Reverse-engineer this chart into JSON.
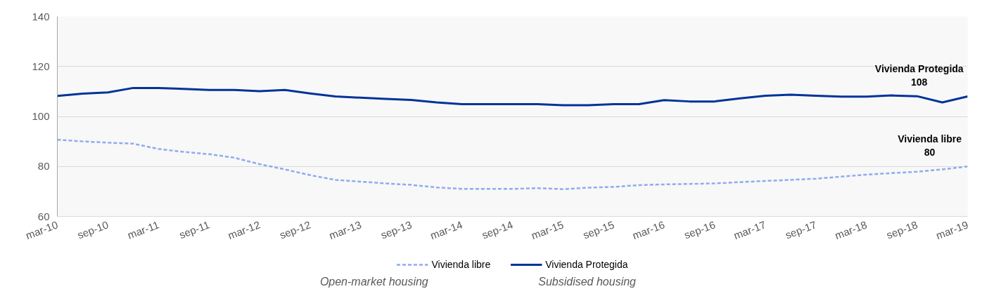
{
  "chart_data": {
    "type": "line",
    "categories": [
      "mar-10",
      null,
      "sep-10",
      null,
      "mar-11",
      null,
      "sep-11",
      null,
      "mar-12",
      null,
      "sep-12",
      null,
      "mar-13",
      null,
      "sep-13",
      null,
      "mar-14",
      null,
      "sep-14",
      null,
      "mar-15",
      null,
      "sep-15",
      null,
      "mar-16",
      null,
      "sep-16",
      null,
      "mar-17",
      null,
      "sep-17",
      null,
      "mar-18",
      null,
      "sep-18",
      null,
      "mar-19"
    ],
    "series": [
      {
        "name": "Vivienda libre",
        "color": "#8eaaf0",
        "line_style": "dashed",
        "values": [
          90.7,
          90.0,
          89.5,
          89.1,
          87.0,
          85.8,
          84.9,
          83.5,
          80.9,
          78.8,
          76.5,
          74.6,
          73.9,
          73.2,
          72.6,
          71.6,
          71.0,
          71.0,
          71.0,
          71.3,
          70.9,
          71.5,
          71.8,
          72.5,
          72.8,
          73.0,
          73.2,
          73.7,
          74.2,
          74.6,
          75.1,
          75.9,
          76.7,
          77.3,
          77.9,
          78.8,
          80
        ]
      },
      {
        "name": "Vivienda Protegida",
        "color": "#003399",
        "line_style": "solid",
        "values": [
          108.2,
          109.1,
          109.6,
          111.4,
          111.4,
          111.0,
          110.6,
          110.6,
          110.1,
          110.6,
          109.2,
          108.0,
          107.5,
          107.0,
          106.6,
          105.6,
          104.9,
          104.9,
          104.9,
          104.9,
          104.5,
          104.5,
          104.9,
          104.9,
          106.5,
          106.0,
          106.0,
          107.2,
          108.3,
          108.7,
          108.3,
          107.9,
          107.9,
          108.4,
          108.1,
          105.6,
          108
        ]
      }
    ],
    "ylim": [
      60,
      140
    ],
    "yticks": [
      60,
      80,
      100,
      120,
      140
    ],
    "grid": "y",
    "legend": "bottom",
    "annotations": [
      {
        "text": "Vivienda Protegida\n108",
        "x": "mar-19",
        "y": 108
      },
      {
        "text": "Vivienda libre\n80",
        "x": "mar-19",
        "y": 80
      },
      "Open-market housing",
      "Subsidised housing"
    ]
  }
}
